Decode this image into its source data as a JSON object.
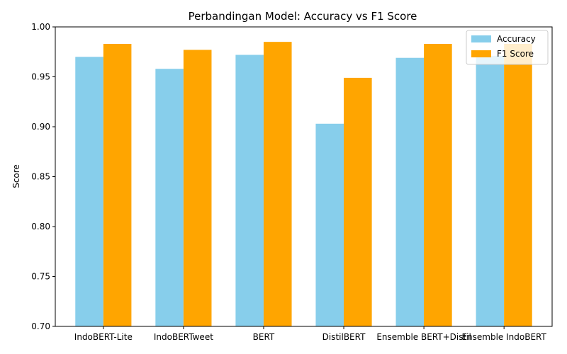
{
  "chart_data": {
    "type": "bar",
    "title": "Perbandingan Model: Accuracy vs F1 Score",
    "xlabel": "",
    "ylabel": "Score",
    "ylim": [
      0.7,
      1.0
    ],
    "yticks": [
      "0.70",
      "0.75",
      "0.80",
      "0.85",
      "0.90",
      "0.95",
      "1.00"
    ],
    "categories": [
      "IndoBERT-Lite",
      "IndoBERTweet",
      "BERT",
      "DistilBERT",
      "Ensemble BERT+Distil",
      "Ensemble IndoBERT"
    ],
    "series": [
      {
        "name": "Accuracy",
        "color": "#87ceeb",
        "values": [
          0.97,
          0.958,
          0.972,
          0.903,
          0.969,
          0.971
        ]
      },
      {
        "name": "F1 Score",
        "color": "#ffa500",
        "values": [
          0.983,
          0.977,
          0.985,
          0.949,
          0.983,
          0.983
        ]
      }
    ],
    "grid": false,
    "legend": "top-right"
  }
}
